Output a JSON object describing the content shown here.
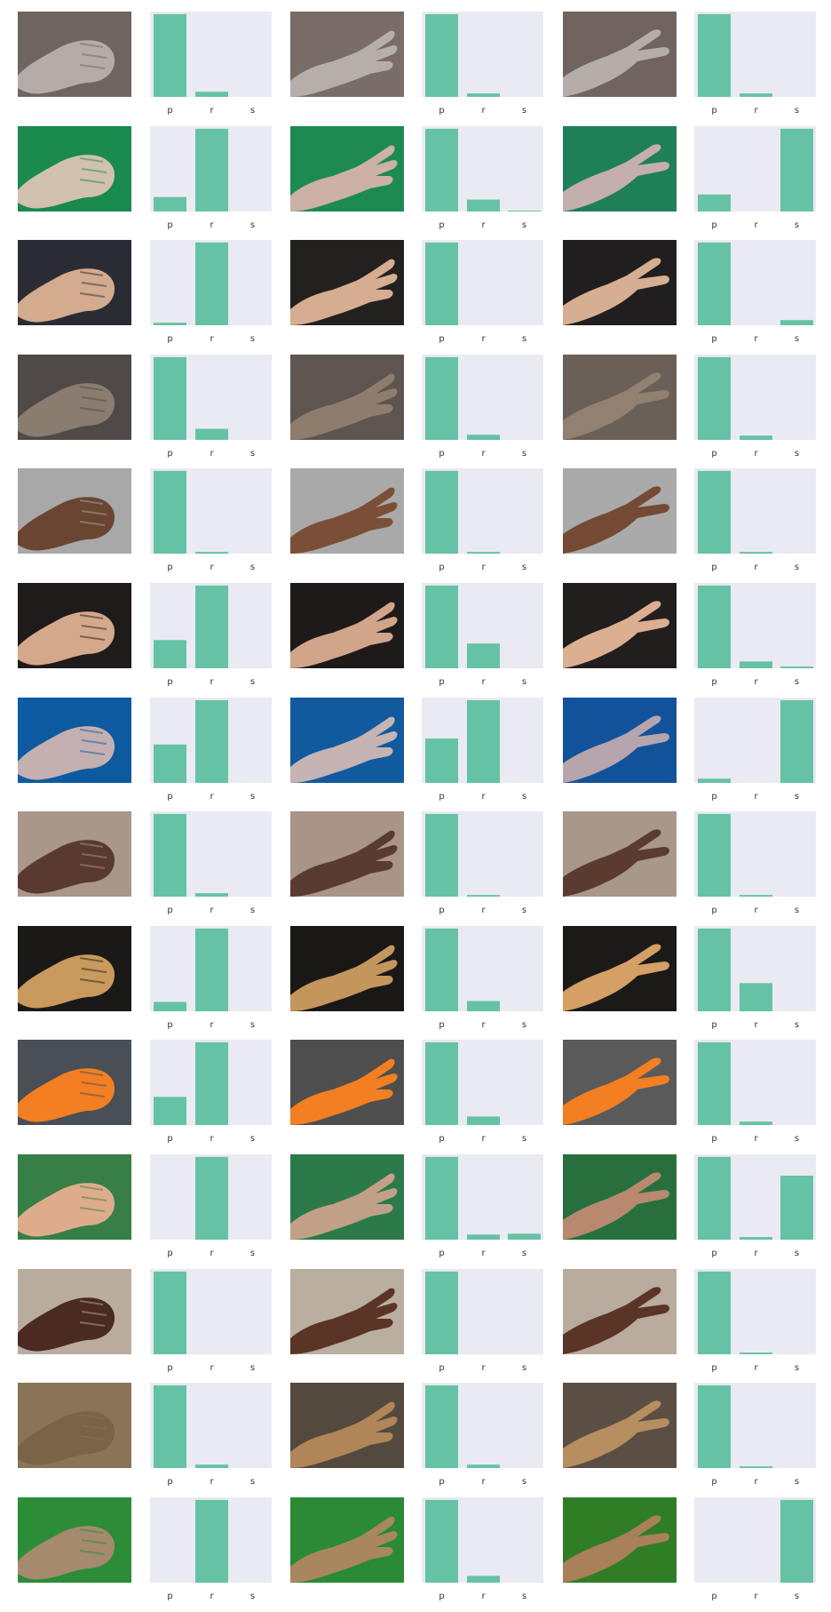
{
  "layout": {
    "rows": 14,
    "pairs_per_row": 3
  },
  "colors": {
    "bar": "#66c2a5",
    "plot_bg": "#eaeaf2",
    "tick": "#333333"
  },
  "categories": [
    "p",
    "r",
    "s"
  ],
  "hand_colors": [
    [
      "#5a4a44",
      "#a9a19b"
    ],
    [
      "#1f8a4f",
      "#cfc0ae"
    ],
    [
      "#2a2a30",
      "#d4a98e"
    ],
    [
      "#5e5752",
      "#8b7b6c"
    ],
    [
      "#a7a7a7",
      "#6a4530"
    ],
    [
      "#211c1c",
      "#d6a98a"
    ],
    [
      "#10579c",
      "#c3aeae"
    ],
    [
      "#a8978a",
      "#5a3b30"
    ],
    [
      "#1a1816",
      "#c89a5c"
    ],
    [
      "#4b4e54",
      "#f37f22"
    ],
    [
      "#368047",
      "#ddab8c"
    ],
    [
      "#b8ab9f",
      "#4a2a22"
    ],
    [
      "#2f2a28",
      "#8d7154"
    ],
    [
      "#2b8f3a",
      "#a2896b"
    ]
  ],
  "images": [
    [
      {
        "pose": "rock",
        "bg": "#6d6560",
        "hand": "#b4aca8"
      },
      {
        "pose": "paper",
        "bg": "#7a6c66",
        "hand": "#b6aeaa"
      },
      {
        "pose": "scissors",
        "bg": "#71645f",
        "hand": "#b5ada9"
      }
    ],
    [
      {
        "pose": "rock",
        "bg": "#1a8a4f",
        "hand": "#d2c1b0"
      },
      {
        "pose": "paper",
        "bg": "#1d8a52",
        "hand": "#cdb0a8"
      },
      {
        "pose": "scissors",
        "bg": "#1f7f59",
        "hand": "#c4aeae"
      }
    ],
    [
      {
        "pose": "rock",
        "bg": "#2b2c33",
        "hand": "#d3ab8f"
      },
      {
        "pose": "paper",
        "bg": "#232120",
        "hand": "#d6ad90"
      },
      {
        "pose": "scissors",
        "bg": "#201e1e",
        "hand": "#d6ae91"
      }
    ],
    [
      {
        "pose": "rock",
        "bg": "#4f4a47",
        "hand": "#8a7c6f"
      },
      {
        "pose": "paper",
        "bg": "#5e5550",
        "hand": "#8e7c6c"
      },
      {
        "pose": "scissors",
        "bg": "#6a6058",
        "hand": "#928070"
      }
    ],
    [
      {
        "pose": "rock",
        "bg": "#a8a8a8",
        "hand": "#6a4531"
      },
      {
        "pose": "paper",
        "bg": "#a9a9a9",
        "hand": "#7b4f37"
      },
      {
        "pose": "scissors",
        "bg": "#aaaaaa",
        "hand": "#744a34"
      }
    ],
    [
      {
        "pose": "rock",
        "bg": "#201b1b",
        "hand": "#d4a98b"
      },
      {
        "pose": "paper",
        "bg": "#1e1a1a",
        "hand": "#d1a58a"
      },
      {
        "pose": "scissors",
        "bg": "#221e1e",
        "hand": "#dbaf90"
      }
    ],
    [
      {
        "pose": "rock",
        "bg": "#0e5aa0",
        "hand": "#c4b0b0"
      },
      {
        "pose": "paper",
        "bg": "#125a9e",
        "hand": "#c6b4b4"
      },
      {
        "pose": "scissors",
        "bg": "#12529a",
        "hand": "#b7a5ad"
      }
    ],
    [
      {
        "pose": "rock",
        "bg": "#a8978a",
        "hand": "#5a3a30"
      },
      {
        "pose": "paper",
        "bg": "#a89588",
        "hand": "#5a3b31"
      },
      {
        "pose": "scissors",
        "bg": "#a8978b",
        "hand": "#5b3b30"
      }
    ],
    [
      {
        "pose": "rock",
        "bg": "#1b1917",
        "hand": "#c99a5d"
      },
      {
        "pose": "paper",
        "bg": "#1a1816",
        "hand": "#c4965b"
      },
      {
        "pose": "scissors",
        "bg": "#1c1a18",
        "hand": "#d4a065"
      }
    ],
    [
      {
        "pose": "rock",
        "bg": "#4a4e55",
        "hand": "#f37f22"
      },
      {
        "pose": "paper",
        "bg": "#4e4e4e",
        "hand": "#f37f22"
      },
      {
        "pose": "scissors",
        "bg": "#5a5a5a",
        "hand": "#f37f22"
      }
    ],
    [
      {
        "pose": "rock",
        "bg": "#377f46",
        "hand": "#deac8d"
      },
      {
        "pose": "paper",
        "bg": "#2c7a4a",
        "hand": "#c2a088"
      },
      {
        "pose": "scissors",
        "bg": "#27703e",
        "hand": "#b8896e"
      }
    ],
    [
      {
        "pose": "rock",
        "bg": "#b9ac9f",
        "hand": "#4a2a22"
      },
      {
        "pose": "paper",
        "bg": "#baaea0",
        "hand": "#5a3526"
      },
      {
        "pose": "scissors",
        "bg": "#b9ab9e",
        "hand": "#5a3426"
      }
    ],
    [
      {
        "pose": "rock",
        "bg": "#8a7458",
        "hand": "#7a6448"
      },
      {
        "pose": "paper",
        "bg": "#54493f",
        "hand": "#b08658"
      },
      {
        "pose": "scissors",
        "bg": "#5a4e45",
        "hand": "#b68e60"
      }
    ],
    [
      {
        "pose": "rock",
        "bg": "#2c8c38",
        "hand": "#a58a6e"
      },
      {
        "pose": "paper",
        "bg": "#2a8a36",
        "hand": "#a9865f"
      },
      {
        "pose": "scissors",
        "bg": "#2f7e26",
        "hand": "#a9805a"
      }
    ]
  ],
  "chart_data": {
    "type": "bar",
    "categories": [
      "p",
      "r",
      "s"
    ],
    "ylim": [
      0,
      1
    ],
    "grid": false,
    "panels": [
      [
        [
          0.97,
          0.06,
          0.0
        ],
        [
          0.97,
          0.04,
          0.0
        ],
        [
          0.97,
          0.04,
          0.0
        ]
      ],
      [
        [
          0.17,
          0.97,
          0.0
        ],
        [
          0.97,
          0.14,
          0.01
        ],
        [
          0.2,
          0.0,
          0.97
        ]
      ],
      [
        [
          0.03,
          0.97,
          0.0
        ],
        [
          0.97,
          0.0,
          0.0
        ],
        [
          0.97,
          0.0,
          0.06
        ]
      ],
      [
        [
          0.97,
          0.13,
          0.0
        ],
        [
          0.97,
          0.06,
          0.0
        ],
        [
          0.97,
          0.05,
          0.0
        ]
      ],
      [
        [
          0.97,
          0.02,
          0.0
        ],
        [
          0.97,
          0.02,
          0.0
        ],
        [
          0.97,
          0.02,
          0.0
        ]
      ],
      [
        [
          0.33,
          0.97,
          0.0
        ],
        [
          0.97,
          0.29,
          0.0
        ],
        [
          0.97,
          0.08,
          0.02
        ]
      ],
      [
        [
          0.45,
          0.97,
          0.0
        ],
        [
          0.52,
          0.97,
          0.0
        ],
        [
          0.05,
          0.0,
          0.97
        ]
      ],
      [
        [
          0.97,
          0.04,
          0.0
        ],
        [
          0.97,
          0.02,
          0.0
        ],
        [
          0.97,
          0.02,
          0.0
        ]
      ],
      [
        [
          0.11,
          0.97,
          0.0
        ],
        [
          0.97,
          0.12,
          0.0
        ],
        [
          0.97,
          0.33,
          0.0
        ]
      ],
      [
        [
          0.33,
          0.97,
          0.0
        ],
        [
          0.97,
          0.1,
          0.0
        ],
        [
          0.97,
          0.04,
          0.0
        ]
      ],
      [
        [
          0.0,
          0.97,
          0.0
        ],
        [
          0.97,
          0.06,
          0.07
        ],
        [
          0.97,
          0.03,
          0.75
        ]
      ],
      [
        [
          0.97,
          0.0,
          0.0
        ],
        [
          0.97,
          0.0,
          0.0
        ],
        [
          0.97,
          0.02,
          0.0
        ]
      ],
      [
        [
          0.97,
          0.04,
          0.0
        ],
        [
          0.97,
          0.04,
          0.0
        ],
        [
          0.97,
          0.02,
          0.0
        ]
      ],
      [
        [
          0.0,
          0.97,
          0.0
        ],
        [
          0.97,
          0.08,
          0.0
        ],
        [
          0.0,
          0.0,
          0.97
        ]
      ]
    ]
  }
}
